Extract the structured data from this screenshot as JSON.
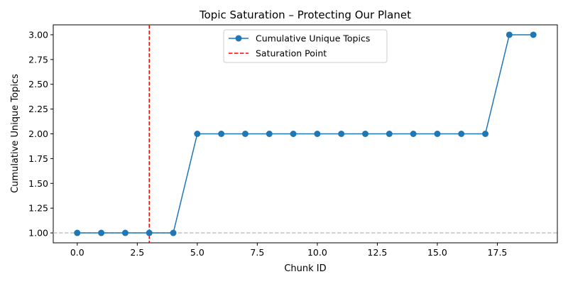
{
  "chart_data": {
    "type": "line",
    "title": "Topic Saturation – Protecting Our Planet",
    "xlabel": "Chunk ID",
    "ylabel": "Cumulative Unique Topics",
    "xlim": [
      -1.0,
      20.0
    ],
    "ylim": [
      0.9,
      3.1
    ],
    "xticks": [
      "0.0",
      "2.5",
      "5.0",
      "7.5",
      "10.0",
      "12.5",
      "15.0",
      "17.5"
    ],
    "xtick_values": [
      0,
      2.5,
      5,
      7.5,
      10,
      12.5,
      15,
      17.5
    ],
    "yticks": [
      "1.00",
      "1.25",
      "1.50",
      "1.75",
      "2.00",
      "2.25",
      "2.50",
      "2.75",
      "3.00"
    ],
    "ytick_values": [
      1.0,
      1.25,
      1.5,
      1.75,
      2.0,
      2.25,
      2.5,
      2.75,
      3.0
    ],
    "grid": false,
    "legend_position": "top-center",
    "series": [
      {
        "name": "Cumulative Unique Topics",
        "color": "#1f77b4",
        "marker": "circle",
        "x": [
          0,
          1,
          2,
          3,
          4,
          5,
          6,
          7,
          8,
          9,
          10,
          11,
          12,
          13,
          14,
          15,
          16,
          17,
          18,
          19
        ],
        "values": [
          1,
          1,
          1,
          1,
          1,
          2,
          2,
          2,
          2,
          2,
          2,
          2,
          2,
          2,
          2,
          2,
          2,
          2,
          3,
          3
        ]
      }
    ],
    "reference_lines": [
      {
        "name": "Saturation Point",
        "orientation": "vertical",
        "value": 3,
        "color": "#ff0000",
        "style": "dashed"
      },
      {
        "name": "",
        "orientation": "horizontal",
        "value": 1.0,
        "color": "#c0c0c0",
        "style": "dashed"
      }
    ]
  }
}
